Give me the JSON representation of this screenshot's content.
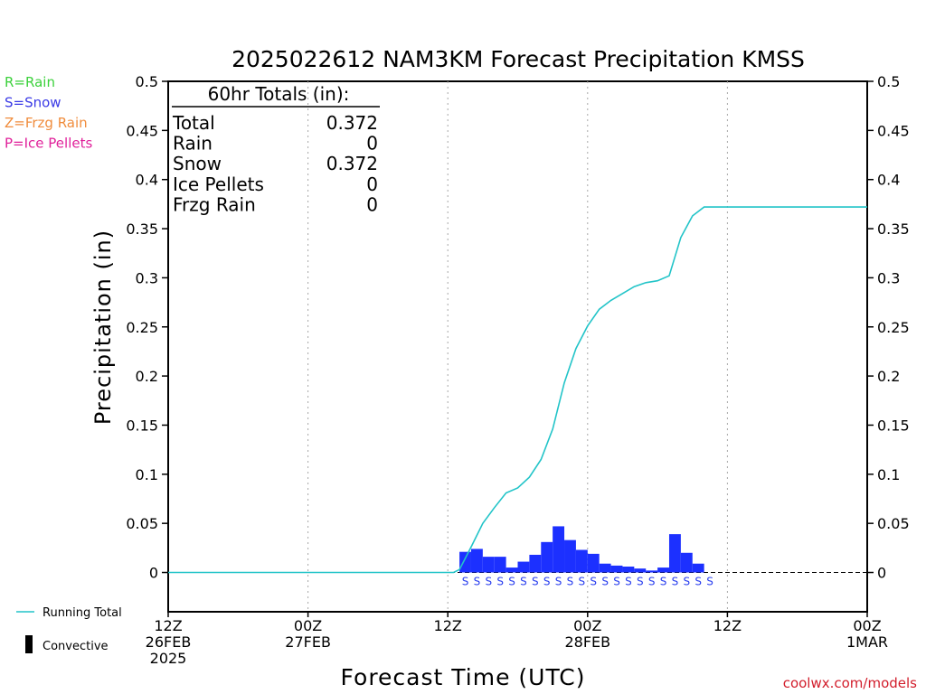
{
  "colors": {
    "rain": "#3bd13b",
    "snow": "#3a3ae6",
    "frzg_rain": "#f08c3c",
    "ice_pellets": "#e0209a",
    "running_total": "#22c4c8",
    "bar": "#1c30ff",
    "credit": "#d21d2b"
  },
  "legend_left": [
    {
      "text": "R=Rain",
      "color": "#3bd13b"
    },
    {
      "text": "S=Snow",
      "color": "#3a3ae6"
    },
    {
      "text": "Z=Frzg Rain",
      "color": "#f08c3c"
    },
    {
      "text": "P=Ice Pellets",
      "color": "#e0209a"
    }
  ],
  "legend_bottom": {
    "running_total": "Running Total",
    "convective": "Convective"
  },
  "totals": {
    "header": "60hr Totals (in):",
    "rows": [
      {
        "label": "Total",
        "value": "0.372"
      },
      {
        "label": "Rain",
        "value": "0"
      },
      {
        "label": "Snow",
        "value": "0.372"
      },
      {
        "label": "Ice Pellets",
        "value": "0"
      },
      {
        "label": "Frzg Rain",
        "value": "0"
      }
    ]
  },
  "credit": "coolwx.com/models",
  "chart_data": {
    "type": "bar",
    "title": "2025022612 NAM3KM Forecast Precipitation KMSS",
    "xlabel": "Forecast Time (UTC)",
    "ylabel": "Precipitation (in)",
    "ylim": [
      -0.04,
      0.5
    ],
    "xlim": [
      0,
      60
    ],
    "grid": "vertical dotted lines at 00Z and 12Z",
    "y_ticks": [
      "0",
      "0.05",
      "0.1",
      "0.15",
      "0.2",
      "0.25",
      "0.3",
      "0.35",
      "0.4",
      "0.45",
      "0.5"
    ],
    "y_tick_values": [
      0,
      0.05,
      0.1,
      0.15,
      0.2,
      0.25,
      0.3,
      0.35,
      0.4,
      0.45,
      0.5
    ],
    "x_ticks": [
      {
        "hour": 0,
        "lines": [
          "12Z",
          "26FEB",
          "2025"
        ]
      },
      {
        "hour": 12,
        "lines": [
          "00Z",
          "27FEB"
        ]
      },
      {
        "hour": 24,
        "lines": [
          "12Z"
        ]
      },
      {
        "hour": 36,
        "lines": [
          "00Z",
          "28FEB"
        ]
      },
      {
        "hour": 48,
        "lines": [
          "12Z"
        ]
      },
      {
        "hour": 60,
        "lines": [
          "00Z",
          "1MAR"
        ]
      }
    ],
    "series": [
      {
        "name": "hourly precipitation",
        "kind": "bar",
        "hours": [
          26,
          27,
          28,
          29,
          30,
          31,
          32,
          33,
          34,
          35,
          36,
          37,
          38,
          39,
          40,
          41,
          42,
          43,
          44,
          45,
          46,
          47
        ],
        "values": [
          0.021,
          0.024,
          0.016,
          0.016,
          0.005,
          0.011,
          0.018,
          0.031,
          0.047,
          0.033,
          0.023,
          0.019,
          0.009,
          0.007,
          0.006,
          0.004,
          0.002,
          0.005,
          0.039,
          0.02,
          0.009,
          0.0
        ],
        "ptype": [
          "S",
          "S",
          "S",
          "S",
          "S",
          "S",
          "S",
          "S",
          "S",
          "S",
          "S",
          "S",
          "S",
          "S",
          "S",
          "S",
          "S",
          "S",
          "S",
          "S",
          "S",
          "S"
        ]
      },
      {
        "name": "Running Total",
        "kind": "line",
        "x": [
          0,
          24,
          24.5,
          25,
          26,
          27,
          28,
          29,
          30,
          31,
          32,
          33,
          34,
          35,
          36,
          37,
          38,
          39,
          40,
          41,
          42,
          43,
          44,
          45,
          46,
          47,
          48,
          60
        ],
        "y": [
          0,
          0,
          0,
          0.003,
          0.026,
          0.05,
          0.066,
          0.081,
          0.086,
          0.097,
          0.115,
          0.146,
          0.193,
          0.228,
          0.251,
          0.268,
          0.277,
          0.284,
          0.291,
          0.295,
          0.297,
          0.302,
          0.341,
          0.363,
          0.372,
          0.372,
          0.372,
          0.372
        ]
      }
    ]
  }
}
